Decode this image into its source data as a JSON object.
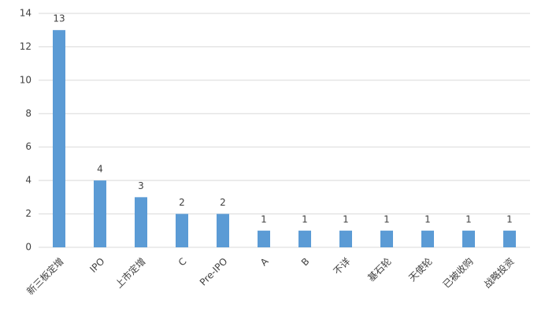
{
  "chart_data": {
    "type": "bar",
    "categories": [
      "新三板定增",
      "IPO",
      "上市定增",
      "C",
      "Pre-IPO",
      "A",
      "B",
      "不详",
      "基石轮",
      "天使轮",
      "已被收购",
      "战略投资"
    ],
    "values": [
      13,
      4,
      3,
      2,
      2,
      1,
      1,
      1,
      1,
      1,
      1,
      1
    ],
    "color": "#5b9bd5",
    "ylim": [
      0,
      14
    ],
    "yticks": [
      0,
      2,
      4,
      6,
      8,
      10,
      12,
      14
    ],
    "grid": true,
    "data_labels": true
  }
}
